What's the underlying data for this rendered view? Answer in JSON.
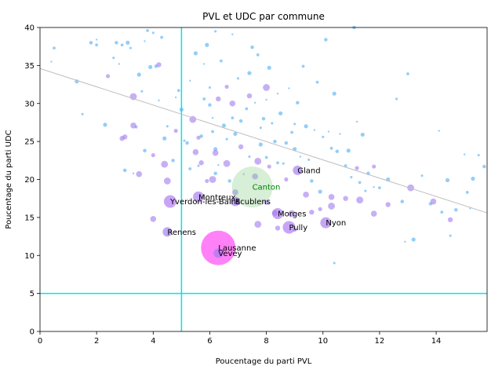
{
  "chart_data": {
    "type": "scatter",
    "title": "PVL et UDC par commune",
    "xlabel": "Poucentage du parti PVL",
    "ylabel": "Poucentage du parti UDC",
    "xlim": [
      0,
      15.8
    ],
    "ylim": [
      0,
      40
    ],
    "x_ticks": [
      0,
      2,
      4,
      6,
      8,
      10,
      12,
      14
    ],
    "y_ticks": [
      0,
      5,
      10,
      15,
      20,
      25,
      30,
      35,
      40
    ],
    "grid": false,
    "colors": {
      "small_points": "#5ab4f5",
      "highlight_start": "#a07af0",
      "highlight_end": "#ff3ef5",
      "canton": "#8ccf8c",
      "canton_text": "#008000",
      "reference_lines": "#00e5ee",
      "regression_line": "#bfbfbf"
    },
    "reference_lines": {
      "x": 5,
      "y": 5
    },
    "regression_line": {
      "x": [
        0,
        15.8
      ],
      "y": [
        34.6,
        15.6
      ]
    },
    "communes": [
      {
        "name": "Lausanne",
        "x": 6.3,
        "y": 11.0,
        "size": 22
      },
      {
        "name": "Vevey",
        "x": 6.3,
        "y": 10.3,
        "size": 6
      },
      {
        "name": "Renens",
        "x": 4.5,
        "y": 13.1,
        "size": 6
      },
      {
        "name": "Yverdon-les-Bains",
        "x": 4.6,
        "y": 17.1,
        "size": 8
      },
      {
        "name": "Montreux",
        "x": 5.6,
        "y": 17.7,
        "size": 7
      },
      {
        "name": "Ecublens",
        "x": 6.9,
        "y": 17.1,
        "size": 6
      },
      {
        "name": "Morges",
        "x": 8.4,
        "y": 15.5,
        "size": 7
      },
      {
        "name": "Pully",
        "x": 8.8,
        "y": 13.7,
        "size": 8
      },
      {
        "name": "Nyon",
        "x": 10.1,
        "y": 14.3,
        "size": 7
      },
      {
        "name": "Gland",
        "x": 9.1,
        "y": 21.2,
        "size": 6
      }
    ],
    "canton": {
      "name": "Canton",
      "x": 7.5,
      "y": 19.0,
      "size": 26
    },
    "mid_points": [
      [
        2.4,
        33.6
      ],
      [
        3.3,
        30.9
      ],
      [
        3.3,
        27.1
      ],
      [
        3.0,
        25.6
      ],
      [
        4.0,
        23.2
      ],
      [
        4.5,
        19.8
      ],
      [
        4.0,
        14.8
      ],
      [
        4.2,
        35.1
      ],
      [
        4.8,
        26.4
      ],
      [
        5.4,
        27.9
      ],
      [
        5.5,
        23.6
      ],
      [
        5.7,
        22.2
      ],
      [
        5.9,
        19.8
      ],
      [
        6.1,
        20.0
      ],
      [
        6.2,
        23.5
      ],
      [
        6.3,
        30.6
      ],
      [
        6.6,
        32.2
      ],
      [
        6.6,
        22.1
      ],
      [
        6.9,
        18.3
      ],
      [
        7.1,
        24.3
      ],
      [
        7.0,
        16.9
      ],
      [
        7.7,
        22.4
      ],
      [
        7.6,
        20.4
      ],
      [
        8.0,
        17.0
      ],
      [
        8.1,
        21.7
      ],
      [
        8.0,
        32.1
      ],
      [
        8.3,
        15.6
      ],
      [
        8.4,
        13.6
      ],
      [
        8.7,
        20.0
      ],
      [
        8.9,
        15.5
      ],
      [
        9.4,
        18.0
      ],
      [
        9.6,
        15.7
      ],
      [
        9.9,
        16.1
      ],
      [
        10.3,
        16.5
      ],
      [
        10.3,
        17.7
      ],
      [
        10.8,
        17.5
      ],
      [
        11.2,
        21.5
      ],
      [
        11.3,
        17.3
      ],
      [
        11.8,
        15.5
      ],
      [
        12.3,
        16.7
      ],
      [
        11.8,
        21.7
      ],
      [
        13.1,
        18.9
      ],
      [
        13.9,
        17.1
      ],
      [
        14.5,
        14.7
      ],
      [
        9.0,
        13.4
      ],
      [
        7.7,
        14.1
      ],
      [
        6.8,
        30.0
      ],
      [
        7.4,
        31.0
      ],
      [
        5.6,
        25.5
      ],
      [
        4.4,
        22.0
      ],
      [
        3.5,
        20.7
      ],
      [
        2.9,
        25.4
      ]
    ],
    "small_points": [
      [
        0.4,
        35.5
      ],
      [
        0.5,
        37.3
      ],
      [
        1.3,
        32.9
      ],
      [
        1.5,
        28.6
      ],
      [
        1.8,
        38.0
      ],
      [
        2.0,
        38.4
      ],
      [
        2.0,
        37.7
      ],
      [
        2.3,
        27.2
      ],
      [
        2.6,
        36.0
      ],
      [
        2.7,
        38.0
      ],
      [
        2.8,
        35.2
      ],
      [
        2.9,
        37.7
      ],
      [
        3.1,
        38.0
      ],
      [
        3.2,
        37.3
      ],
      [
        3.0,
        21.2
      ],
      [
        3.3,
        20.8
      ],
      [
        3.4,
        26.9
      ],
      [
        3.5,
        33.8
      ],
      [
        3.6,
        31.6
      ],
      [
        3.7,
        23.8
      ],
      [
        3.7,
        38.2
      ],
      [
        3.8,
        39.6
      ],
      [
        3.9,
        34.8
      ],
      [
        4.0,
        39.3
      ],
      [
        4.1,
        34.9
      ],
      [
        4.2,
        30.4
      ],
      [
        4.3,
        38.7
      ],
      [
        4.4,
        25.4
      ],
      [
        4.5,
        27.0
      ],
      [
        4.7,
        22.5
      ],
      [
        4.8,
        30.8
      ],
      [
        4.9,
        31.7
      ],
      [
        5.0,
        29.2
      ],
      [
        5.1,
        25.1
      ],
      [
        5.2,
        24.8
      ],
      [
        5.3,
        33.0
      ],
      [
        5.3,
        21.4
      ],
      [
        5.5,
        36.6
      ],
      [
        5.6,
        21.8
      ],
      [
        5.7,
        25.7
      ],
      [
        5.8,
        35.2
      ],
      [
        5.8,
        30.6
      ],
      [
        5.9,
        37.7
      ],
      [
        6.0,
        32.1
      ],
      [
        6.0,
        29.8
      ],
      [
        6.1,
        28.1
      ],
      [
        6.1,
        26.3
      ],
      [
        6.2,
        24.0
      ],
      [
        6.2,
        39.5
      ],
      [
        6.2,
        20.8
      ],
      [
        6.3,
        21.9
      ],
      [
        6.4,
        35.6
      ],
      [
        6.5,
        27.1
      ],
      [
        6.6,
        25.3
      ],
      [
        6.7,
        19.8
      ],
      [
        6.8,
        39.1
      ],
      [
        6.8,
        28.1
      ],
      [
        6.9,
        26.0
      ],
      [
        7.0,
        33.3
      ],
      [
        7.1,
        27.7
      ],
      [
        7.2,
        20.7
      ],
      [
        7.3,
        29.3
      ],
      [
        7.4,
        34.0
      ],
      [
        7.4,
        23.0
      ],
      [
        7.5,
        37.4
      ],
      [
        7.6,
        30.1
      ],
      [
        7.7,
        36.4
      ],
      [
        7.8,
        24.6
      ],
      [
        7.8,
        26.8
      ],
      [
        7.9,
        28.0
      ],
      [
        8.0,
        30.5
      ],
      [
        8.0,
        22.9
      ],
      [
        8.1,
        34.7
      ],
      [
        8.2,
        27.4
      ],
      [
        8.3,
        25.0
      ],
      [
        8.4,
        31.3
      ],
      [
        8.4,
        22.2
      ],
      [
        8.5,
        28.7
      ],
      [
        8.6,
        22.1
      ],
      [
        8.7,
        24.8
      ],
      [
        8.8,
        32.0
      ],
      [
        8.9,
        26.2
      ],
      [
        9.0,
        24.0
      ],
      [
        9.0,
        27.3
      ],
      [
        9.1,
        30.1
      ],
      [
        9.2,
        23.0
      ],
      [
        9.3,
        34.9
      ],
      [
        9.4,
        27.0
      ],
      [
        9.5,
        22.6
      ],
      [
        9.6,
        19.8
      ],
      [
        9.7,
        26.5
      ],
      [
        9.8,
        32.8
      ],
      [
        9.9,
        18.4
      ],
      [
        10.0,
        25.6
      ],
      [
        10.1,
        38.4
      ],
      [
        10.2,
        26.3
      ],
      [
        10.3,
        24.1
      ],
      [
        10.4,
        31.3
      ],
      [
        10.4,
        9.0
      ],
      [
        10.5,
        23.7
      ],
      [
        10.6,
        26.0
      ],
      [
        10.8,
        21.8
      ],
      [
        10.9,
        23.8
      ],
      [
        11.0,
        20.3
      ],
      [
        11.1,
        40.0
      ],
      [
        11.2,
        27.6
      ],
      [
        11.3,
        19.6
      ],
      [
        11.4,
        25.9
      ],
      [
        11.5,
        18.5
      ],
      [
        11.6,
        20.8
      ],
      [
        11.8,
        19.0
      ],
      [
        12.0,
        18.9
      ],
      [
        12.3,
        20.0
      ],
      [
        12.6,
        30.6
      ],
      [
        12.8,
        17.1
      ],
      [
        12.9,
        11.8
      ],
      [
        13.0,
        33.9
      ],
      [
        13.2,
        12.1
      ],
      [
        13.5,
        20.5
      ],
      [
        13.8,
        16.8
      ],
      [
        14.1,
        26.4
      ],
      [
        14.2,
        15.7
      ],
      [
        14.4,
        19.9
      ],
      [
        14.5,
        12.6
      ],
      [
        14.7,
        16.0
      ],
      [
        15.0,
        23.3
      ],
      [
        15.1,
        18.3
      ],
      [
        15.3,
        20.1
      ],
      [
        15.5,
        23.2
      ],
      [
        15.7,
        21.7
      ],
      [
        15.2,
        16.2
      ]
    ]
  }
}
